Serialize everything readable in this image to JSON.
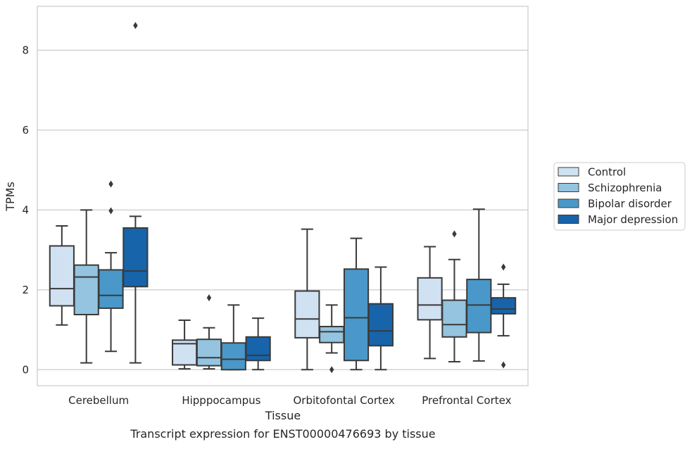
{
  "chart_data": {
    "type": "boxplot",
    "caption": "Transcript expression for ENST00000476693 by tissue",
    "xlabel": "Tissue",
    "ylabel": "TPMs",
    "ylim": [
      -0.4,
      9.1
    ],
    "yticks": [
      0,
      2,
      4,
      6,
      8
    ],
    "grid": "horizontal",
    "legend_position": "right",
    "categories": [
      "Cerebellum",
      "Hipppocampus",
      "Orbitofontal Cortex",
      "Prefrontal Cortex"
    ],
    "series": [
      {
        "name": "Control",
        "color": "#d0e1f2",
        "boxes": [
          {
            "whisker_low": 1.12,
            "q1": 1.6,
            "median": 2.03,
            "q3": 3.1,
            "whisker_high": 3.6,
            "outliers": []
          },
          {
            "whisker_low": 0.02,
            "q1": 0.12,
            "median": 0.65,
            "q3": 0.74,
            "whisker_high": 1.24,
            "outliers": []
          },
          {
            "whisker_low": 0.0,
            "q1": 0.8,
            "median": 1.27,
            "q3": 1.97,
            "whisker_high": 3.52,
            "outliers": []
          },
          {
            "whisker_low": 0.28,
            "q1": 1.25,
            "median": 1.62,
            "q3": 2.3,
            "whisker_high": 3.08,
            "outliers": []
          }
        ]
      },
      {
        "name": "Schizophrenia",
        "color": "#94c4df",
        "boxes": [
          {
            "whisker_low": 0.17,
            "q1": 1.38,
            "median": 2.32,
            "q3": 2.62,
            "whisker_high": 4.0,
            "outliers": []
          },
          {
            "whisker_low": 0.02,
            "q1": 0.1,
            "median": 0.3,
            "q3": 0.76,
            "whisker_high": 1.05,
            "outliers": [
              1.8
            ]
          },
          {
            "whisker_low": 0.42,
            "q1": 0.68,
            "median": 0.95,
            "q3": 1.08,
            "whisker_high": 1.62,
            "outliers": [
              0.0
            ]
          },
          {
            "whisker_low": 0.2,
            "q1": 0.82,
            "median": 1.13,
            "q3": 1.74,
            "whisker_high": 2.76,
            "outliers": [
              3.4
            ]
          }
        ]
      },
      {
        "name": "Bipolar disorder",
        "color": "#4a98c9",
        "boxes": [
          {
            "whisker_low": 0.46,
            "q1": 1.54,
            "median": 1.86,
            "q3": 2.5,
            "whisker_high": 2.93,
            "outliers": [
              3.98,
              4.65
            ]
          },
          {
            "whisker_low": 0.0,
            "q1": 0.0,
            "median": 0.26,
            "q3": 0.67,
            "whisker_high": 1.62,
            "outliers": []
          },
          {
            "whisker_low": 0.0,
            "q1": 0.23,
            "median": 1.3,
            "q3": 2.52,
            "whisker_high": 3.29,
            "outliers": []
          },
          {
            "whisker_low": 0.22,
            "q1": 0.93,
            "median": 1.62,
            "q3": 2.26,
            "whisker_high": 4.02,
            "outliers": []
          }
        ]
      },
      {
        "name": "Major depression",
        "color": "#1764ab",
        "boxes": [
          {
            "whisker_low": 0.17,
            "q1": 2.08,
            "median": 2.47,
            "q3": 3.55,
            "whisker_high": 3.84,
            "outliers": [
              8.62
            ]
          },
          {
            "whisker_low": 0.0,
            "q1": 0.23,
            "median": 0.36,
            "q3": 0.82,
            "whisker_high": 1.29,
            "outliers": []
          },
          {
            "whisker_low": 0.0,
            "q1": 0.6,
            "median": 0.97,
            "q3": 1.65,
            "whisker_high": 2.57,
            "outliers": []
          },
          {
            "whisker_low": 0.85,
            "q1": 1.4,
            "median": 1.52,
            "q3": 1.8,
            "whisker_high": 2.14,
            "outliers": [
              2.57,
              0.12
            ]
          }
        ]
      }
    ]
  }
}
